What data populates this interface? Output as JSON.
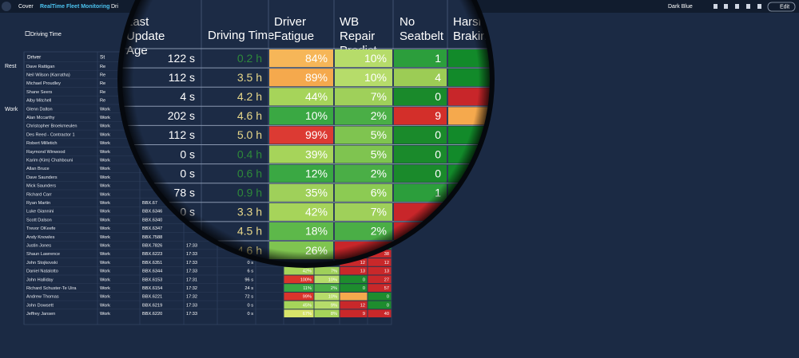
{
  "topbar": {
    "tabs": [
      "Cover",
      "RealTime Fleet Monitoring",
      "Dri"
    ],
    "theme": "Dark Blue",
    "edit": "Edit"
  },
  "group": "Driving Time",
  "side_labels": [
    "Rest",
    "Work"
  ],
  "table": {
    "headers": [
      "Driver",
      "St"
    ],
    "rows": [
      {
        "driver": "Dave Rattigan",
        "status": "Re"
      },
      {
        "driver": "Neil Wilson (Karratha)",
        "status": "Re"
      },
      {
        "driver": "Michael Proudley",
        "status": "Re"
      },
      {
        "driver": "Shane Seers",
        "status": "Re"
      },
      {
        "driver": "Alby Mitchell",
        "status": "Re"
      },
      {
        "driver": "Glenn Dalton",
        "status": "Work"
      },
      {
        "driver": "Alan Mccarthy",
        "status": "Work"
      },
      {
        "driver": "Christopher Broekmeulen",
        "status": "Work"
      },
      {
        "driver": "Des Reed - Contractor 1",
        "status": "Work"
      },
      {
        "driver": "Robert Milletich",
        "status": "Work"
      },
      {
        "driver": "Raymond Winwood",
        "status": "Work"
      },
      {
        "driver": "Karim (Kim) Chahbouni",
        "status": "Work"
      },
      {
        "driver": "Allan Bruce",
        "status": "Work"
      },
      {
        "driver": "Dave Saunders",
        "status": "Work"
      },
      {
        "driver": "Mick Saunders",
        "status": "Work"
      },
      {
        "driver": "Richard Carr",
        "status": "Work"
      },
      {
        "driver": "Ryan Martin",
        "status": "Work",
        "vehicle": "BBX.67"
      },
      {
        "driver": "Luke Giannini",
        "status": "Work",
        "vehicle": "BBX.6346"
      },
      {
        "driver": "Scott Dalson",
        "status": "Work",
        "vehicle": "BBX.6340"
      },
      {
        "driver": "Trevor OKeefe",
        "status": "Work",
        "vehicle": "BBX.6347"
      },
      {
        "driver": "Andy Knowles",
        "status": "Work",
        "vehicle": "BBX.7588"
      },
      {
        "driver": "Justin Jones",
        "status": "Work",
        "vehicle": "BBX.7826",
        "time": "17:33",
        "harsh": 0,
        "fills": [
          null,
          null,
          null,
          "#1e8c2e"
        ]
      },
      {
        "driver": "Shaun Lawrence",
        "status": "Work",
        "vehicle": "BBX.6223",
        "time": "17:33",
        "seatbelt": 0,
        "harsh": 38,
        "fills": [
          null,
          null,
          "#1e8c2e",
          "#c9282a"
        ]
      },
      {
        "driver": "John Stojkovski",
        "status": "Work",
        "vehicle": "BBX.6351",
        "time": "17:33",
        "age": "0 s",
        "seatbelt": 12,
        "harsh": 12,
        "fills": [
          null,
          null,
          "#c9282a",
          "#c9282a"
        ]
      },
      {
        "driver": "Daniel Natalotto",
        "status": "Work",
        "vehicle": "BBX.6344",
        "time": "17:33",
        "age": "6 s",
        "fatigue": "42%",
        "wb": "7%",
        "seatbelt": 13,
        "harsh": 13,
        "fills": [
          "#a6d45a",
          "#9fd05a",
          "#c9282a",
          "#c9282a"
        ]
      },
      {
        "driver": "John Halliday",
        "status": "Work",
        "vehicle": "BBX.6153",
        "time": "17:31",
        "age": "96 s",
        "fatigue": "100%",
        "wb": "10%",
        "seatbelt": 0,
        "harsh": 27,
        "fills": [
          "#d9342b",
          "#b6dc6a",
          "#1e8c2e",
          "#c9282a"
        ]
      },
      {
        "driver": "Richard Schuster-Te Uira",
        "status": "Work",
        "vehicle": "BBX.6154",
        "time": "17:32",
        "age": "24 s",
        "fatigue": "11%",
        "wb": "2%",
        "seatbelt": 0,
        "harsh": 57,
        "fills": [
          "#3aa843",
          "#4aae46",
          "#1e8c2e",
          "#c9282a"
        ]
      },
      {
        "driver": "Andrew Thomas",
        "status": "Work",
        "vehicle": "BBX.6221",
        "time": "17:32",
        "age": "72 s",
        "fatigue": "99%",
        "wb": "10%",
        "harsh": 0,
        "fills": [
          "#d9342b",
          "#b6dc6a",
          "#f5a94d",
          "#1e8c2e"
        ]
      },
      {
        "driver": "John Dowsett",
        "status": "Work",
        "vehicle": "BBX.6219",
        "time": "17:33",
        "age": "0 s",
        "fatigue": "45%",
        "wb": "9%",
        "seatbelt": 12,
        "harsh": 0,
        "fills": [
          "#a6d45a",
          "#b6dc6a",
          "#c9282a",
          "#1e8c2e"
        ]
      },
      {
        "driver": "Jeffrey Jansen",
        "status": "Work",
        "vehicle": "BBX.6220",
        "time": "17:33",
        "age": "0 s",
        "fatigue": "67%",
        "wb": "8%",
        "seatbelt": 9,
        "harsh": 40,
        "fills": [
          "#d8e46a",
          "#a6d45a",
          "#c9282a",
          "#c9282a"
        ]
      }
    ]
  },
  "magnifier": {
    "headers": [
      "Last Update Age",
      "Driving Time",
      "Driver Fatigue",
      "WB Repair Predict",
      "No Seatbelt",
      "Harsh Braking"
    ],
    "rows": [
      {
        "age": "122 s",
        "driving": "0.2 h",
        "fatigue": "84%",
        "wb": "10%",
        "seatbelt": 1,
        "fills": [
          "#f6b658",
          "#b6dc6a",
          "#2c9e3c",
          "#128a2a"
        ]
      },
      {
        "age": "112 s",
        "driving": "3.5 h",
        "fatigue": "89%",
        "wb": "10%",
        "seatbelt": 4,
        "fills": [
          "#f5a94d",
          "#b6dc6a",
          "#9ccc55",
          "#128a2a"
        ]
      },
      {
        "age": "4 s",
        "driving": "4.2 h",
        "fatigue": "44%",
        "wb": "7%",
        "seatbelt": 0,
        "fills": [
          "#a6d45a",
          "#9fd05a",
          "#1a8a2b",
          "#c8262a"
        ]
      },
      {
        "age": "202 s",
        "driving": "4.6 h",
        "fatigue": "10%",
        "wb": "2%",
        "seatbelt": 9,
        "fills": [
          "#3aa843",
          "#4aae46",
          "#d32f2a",
          "#f5a94d"
        ]
      },
      {
        "age": "112 s",
        "driving": "5.0 h",
        "fatigue": "99%",
        "wb": "5%",
        "seatbelt": 0,
        "fills": [
          "#dc3a33",
          "#7fc450",
          "#1a8a2b",
          "#128a2a"
        ]
      },
      {
        "age": "0 s",
        "driving": "0.4 h",
        "fatigue": "39%",
        "wb": "5%",
        "seatbelt": 0,
        "fills": [
          "#a6d45a",
          "#7fc450",
          "#1a8a2b",
          "#128a2a"
        ]
      },
      {
        "age": "0 s",
        "driving": "0.6 h",
        "fatigue": "12%",
        "wb": "2%",
        "seatbelt": 0,
        "fills": [
          "#3aa843",
          "#4aae46",
          "#1a8a2b",
          "#128a2a"
        ]
      },
      {
        "age": "78 s",
        "driving": "0.9 h",
        "fatigue": "35%",
        "wb": "6%",
        "seatbelt": 1,
        "fills": [
          "#9fd05a",
          "#8ccb53",
          "#2c9e3c",
          "#128a2a"
        ]
      },
      {
        "age": "0 s",
        "driving": "3.3 h",
        "fatigue": "42%",
        "wb": "7%",
        "fills": [
          "#a6d45a",
          "#9fd05a",
          "#c8262a",
          "#128a2a"
        ]
      },
      {
        "driving": "4.5 h",
        "fatigue": "18%",
        "wb": "2%",
        "fills": [
          "#5db84a",
          "#4aae46",
          "#c8262a",
          "#f0d060"
        ]
      },
      {
        "driving": "4.6 h",
        "fatigue": "26%",
        "fills": [
          "#7fc450",
          "#c8262a",
          "#1a8a2b",
          null
        ]
      }
    ]
  }
}
